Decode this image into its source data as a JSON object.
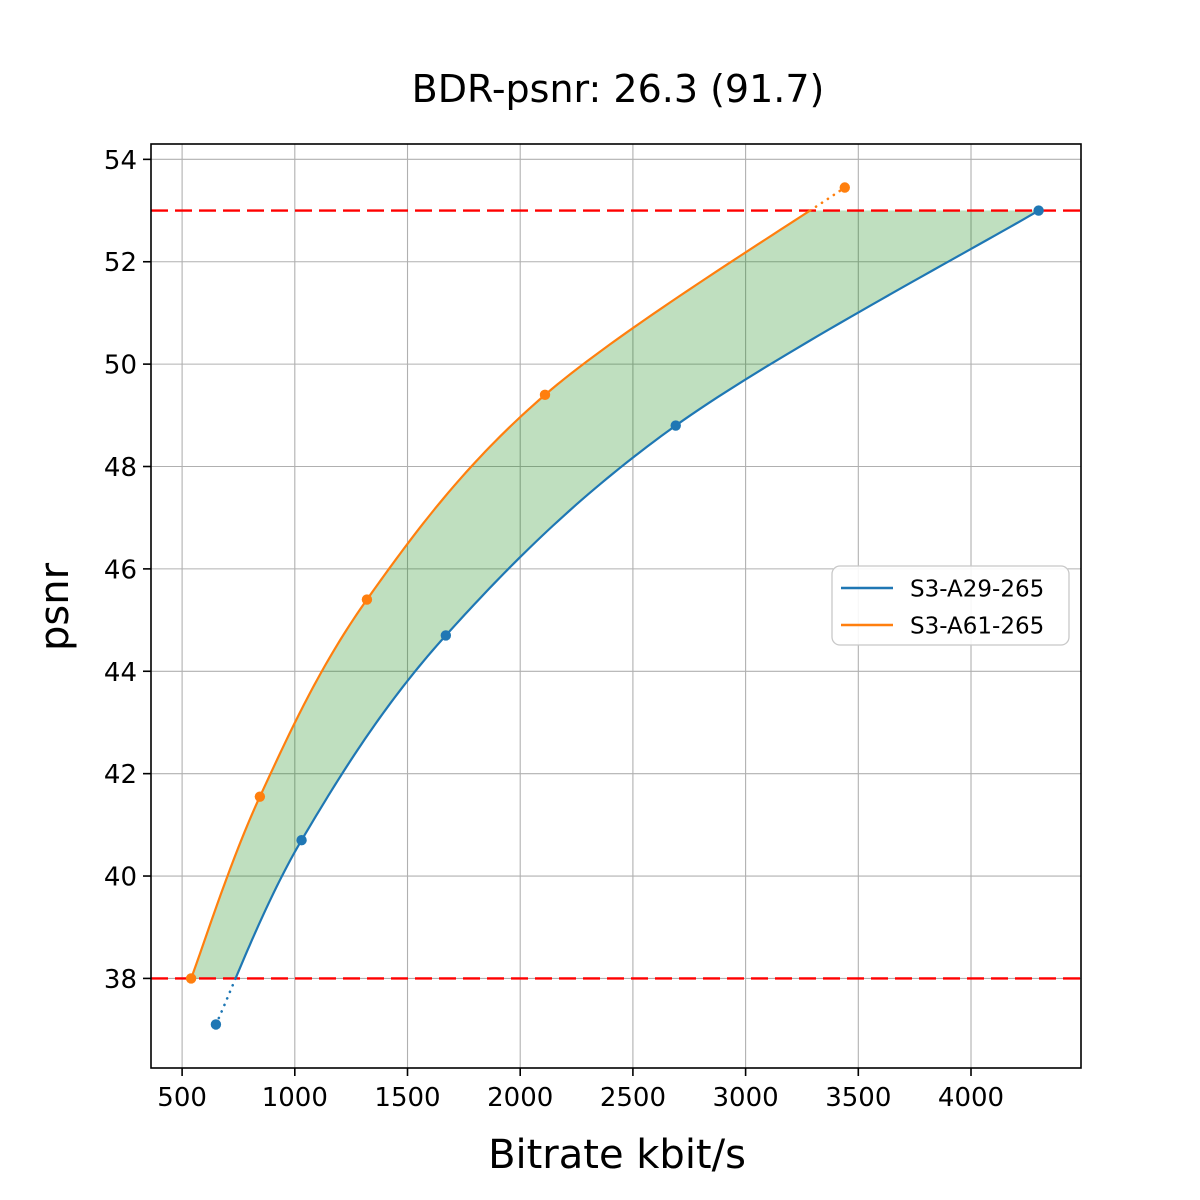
{
  "chart_data": {
    "type": "line",
    "title": "BDR-psnr: 26.3 (91.7)",
    "bdr_psnr": 26.3,
    "bdr_psnr_secondary": 91.7,
    "xlabel": "Bitrate kbit/s",
    "ylabel": "psnr",
    "xlim": [
      362,
      4488
    ],
    "ylim": [
      36.25,
      54.3
    ],
    "xticks": [
      500,
      1000,
      1500,
      2000,
      2500,
      3000,
      3500,
      4000
    ],
    "yticks": [
      38,
      40,
      42,
      44,
      46,
      48,
      50,
      52,
      54
    ],
    "grid": true,
    "grid_color": "#b0b0b0",
    "legend_position": "center-right",
    "bd_interval_lines": {
      "values": [
        38,
        53
      ],
      "color": "#ff0000",
      "style": "dashed"
    },
    "series": [
      {
        "name": "S3-A29-265",
        "color": "#1f77b4",
        "marker": "circle",
        "x": [
          650,
          1030,
          1670,
          2690,
          4300
        ],
        "y": [
          37.1,
          40.7,
          44.7,
          48.8,
          53.0
        ]
      },
      {
        "name": "S3-A61-265",
        "color": "#ff7f0e",
        "marker": "circle",
        "x": [
          540,
          845,
          1320,
          2110,
          3440
        ],
        "y": [
          38.0,
          41.55,
          45.4,
          49.4,
          53.45
        ]
      }
    ],
    "shaded_region": {
      "between": [
        "S3-A61-265",
        "S3-A29-265"
      ],
      "y_range": [
        38,
        53
      ],
      "color": "#008000",
      "opacity": 0.25
    },
    "legend": {
      "entries": [
        "S3-A29-265",
        "S3-A61-265"
      ]
    }
  }
}
